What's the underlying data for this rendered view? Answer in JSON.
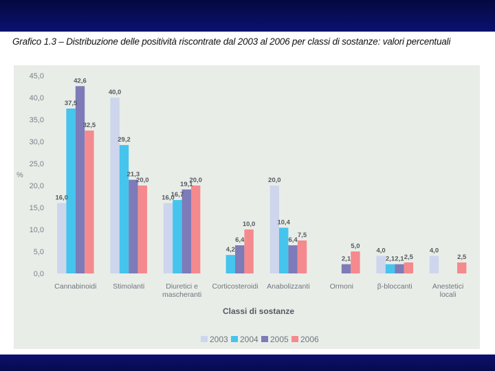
{
  "caption": "Grafico 1.3 – Distribuzione delle positività riscontrate dal 2003 al 2006 per classi di sostanze: valori percentuali",
  "chart_data": {
    "type": "bar",
    "title": "Grafico 1.3 – Distribuzione delle positività riscontrate dal 2003 al 2006 per classi di sostanze: valori percentuali",
    "xlabel": "Classi di sostanze",
    "ylabel": "%",
    "ylim": [
      0,
      45
    ],
    "yticks": [
      "0,0",
      "5,0",
      "10,0",
      "15,0",
      "20,0",
      "25,0",
      "30,0",
      "35,0",
      "40,0",
      "45,0"
    ],
    "categories": [
      [
        "Cannabinoidi"
      ],
      [
        "Stimolanti"
      ],
      [
        "Diuretici e",
        "mascheranti"
      ],
      [
        "Corticosteroidi"
      ],
      [
        "Anabolizzanti"
      ],
      [
        "Ormoni"
      ],
      [
        "β-bloccanti"
      ],
      [
        "Anestetici",
        "locali"
      ]
    ],
    "series": [
      {
        "name": "2003",
        "color": "#cdd6ec",
        "values": [
          16.0,
          40.0,
          16.0,
          null,
          20.0,
          null,
          4.0,
          4.0
        ],
        "labels": [
          "16,0",
          "40,0",
          "16,0",
          "",
          "20,0",
          "",
          "4,0",
          "4,0"
        ]
      },
      {
        "name": "2004",
        "color": "#45c4ee",
        "values": [
          37.5,
          29.2,
          16.7,
          4.2,
          10.4,
          null,
          2.1,
          null
        ],
        "labels": [
          "37,5",
          "29,2",
          "16,7",
          "4,2",
          "10,4",
          "",
          "2,1",
          ""
        ]
      },
      {
        "name": "2005",
        "color": "#7d7bb8",
        "values": [
          42.6,
          21.3,
          19.1,
          6.4,
          6.4,
          2.1,
          2.1,
          null
        ],
        "labels": [
          "42,6",
          "21,3",
          "19,1",
          "6,4",
          "6,4",
          "2,1",
          "2,1",
          ""
        ]
      },
      {
        "name": "2006",
        "color": "#f58a8e",
        "values": [
          32.5,
          20.0,
          20.0,
          10.0,
          7.5,
          5.0,
          2.5,
          2.5
        ],
        "labels": [
          "32,5",
          "20,0",
          "20,0",
          "10,0",
          "7,5",
          "5,0",
          "2,5",
          "2,5"
        ]
      }
    ],
    "legend_position": "bottom-right"
  }
}
